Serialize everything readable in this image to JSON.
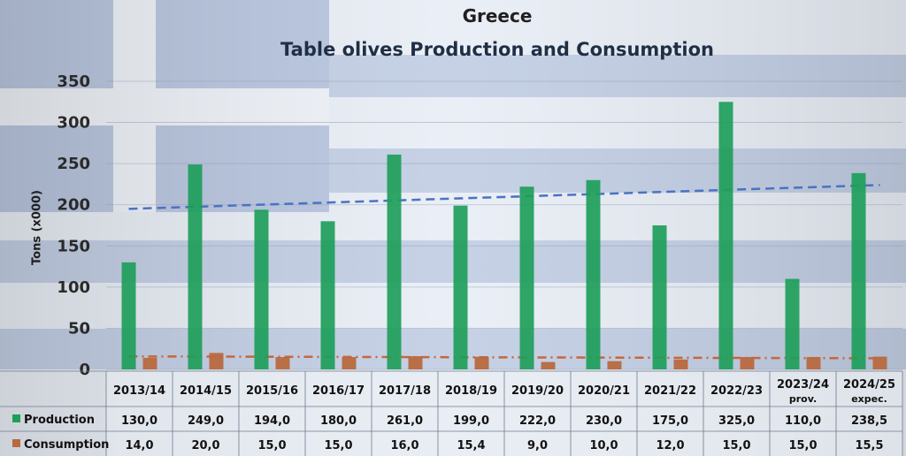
{
  "chart_data": {
    "type": "bar",
    "title": "Greece",
    "subtitle": "Table olives Production and Consumption",
    "ylabel": "Tons (x000)",
    "ylim": [
      0,
      350
    ],
    "yticks": [
      0,
      50,
      100,
      150,
      200,
      250,
      300,
      350
    ],
    "categories": [
      "2013/14",
      "2014/15",
      "2015/16",
      "2016/17",
      "2017/18",
      "2018/19",
      "2019/20",
      "2020/21",
      "2021/22",
      "2022/23",
      "2023/24",
      "2024/25"
    ],
    "category_notes": [
      "",
      "",
      "",
      "",
      "",
      "",
      "",
      "",
      "",
      "",
      "prov.",
      "expec."
    ],
    "series": [
      {
        "name": "Production",
        "color": "#1e9e5a",
        "values": [
          130.0,
          249.0,
          194.0,
          180.0,
          261.0,
          199.0,
          222.0,
          230.0,
          175.0,
          325.0,
          110.0,
          238.5
        ],
        "labels": [
          "130,0",
          "249,0",
          "194,0",
          "180,0",
          "261,0",
          "199,0",
          "222,0",
          "230,0",
          "175,0",
          "325,0",
          "110,0",
          "238,5"
        ]
      },
      {
        "name": "Consumption",
        "color": "#b8693f",
        "values": [
          14.0,
          20.0,
          15.0,
          15.0,
          16.0,
          15.4,
          9.0,
          10.0,
          12.0,
          15.0,
          15.0,
          15.5
        ],
        "labels": [
          "14,0",
          "20,0",
          "15,0",
          "15,0",
          "16,0",
          "15,4",
          "9,0",
          "10,0",
          "12,0",
          "15,0",
          "15,0",
          "15,5"
        ]
      }
    ],
    "trendlines": [
      {
        "series": "Production",
        "color": "#4a72c4",
        "style": "dashed",
        "start": 195,
        "end": 224
      },
      {
        "series": "Consumption",
        "color": "#c8663a",
        "style": "dash-dot",
        "start": 15.8,
        "end": 13.5
      }
    ],
    "grid": true,
    "legend": "data table"
  }
}
